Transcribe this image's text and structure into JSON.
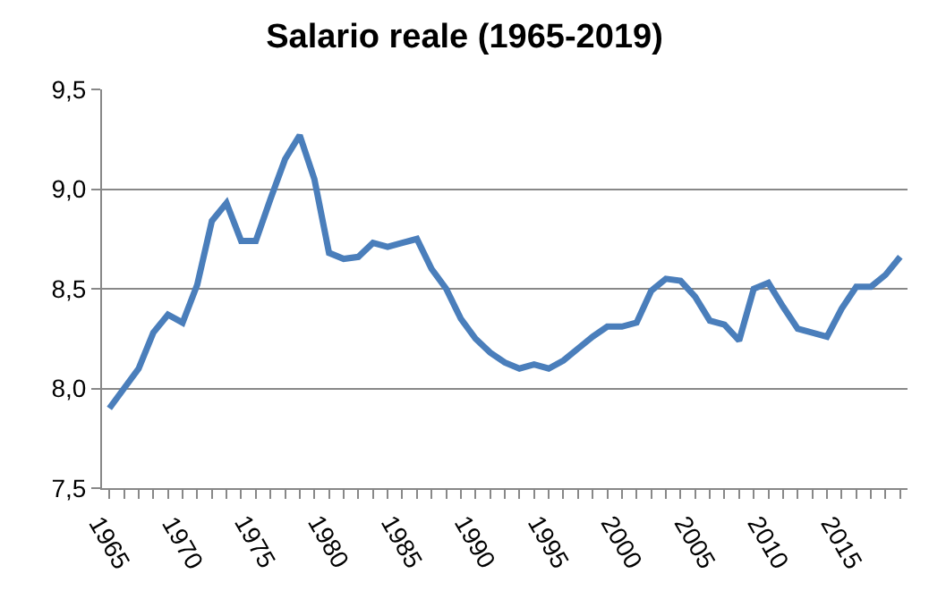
{
  "chart_data": {
    "type": "line",
    "title": "Salario reale (1965-2019)",
    "x": [
      1965,
      1966,
      1967,
      1968,
      1969,
      1970,
      1971,
      1972,
      1973,
      1974,
      1975,
      1976,
      1977,
      1978,
      1979,
      1980,
      1981,
      1982,
      1983,
      1984,
      1985,
      1986,
      1987,
      1988,
      1989,
      1990,
      1991,
      1992,
      1993,
      1994,
      1995,
      1996,
      1997,
      1998,
      1999,
      2000,
      2001,
      2002,
      2003,
      2004,
      2005,
      2006,
      2007,
      2008,
      2009,
      2010,
      2011,
      2012,
      2013,
      2014,
      2015,
      2016,
      2017,
      2018,
      2019
    ],
    "series": [
      {
        "color": "#4a7ebb",
        "values": [
          7.9,
          8.0,
          8.1,
          8.28,
          8.37,
          8.33,
          8.52,
          8.84,
          8.93,
          8.74,
          8.74,
          8.95,
          9.15,
          9.27,
          9.05,
          8.68,
          8.65,
          8.66,
          8.73,
          8.71,
          8.73,
          8.75,
          8.6,
          8.5,
          8.35,
          8.25,
          8.18,
          8.13,
          8.1,
          8.12,
          8.1,
          8.14,
          8.2,
          8.26,
          8.31,
          8.31,
          8.33,
          8.49,
          8.55,
          8.54,
          8.46,
          8.34,
          8.32,
          8.24,
          8.5,
          8.53,
          8.41,
          8.3,
          8.28,
          8.26,
          8.4,
          8.51,
          8.51,
          8.57,
          8.66
        ]
      }
    ],
    "xlim": [
      1964.5,
      2019.5
    ],
    "xticks": [
      1965,
      1970,
      1975,
      1980,
      1985,
      1990,
      1995,
      2000,
      2005,
      2010,
      2015
    ],
    "ylim": [
      7.5,
      9.5
    ],
    "yticks": [
      {
        "value": 7.5,
        "label": "7,5"
      },
      {
        "value": 8,
        "label": "8,0"
      },
      {
        "value": 8.5,
        "label": "8,5"
      },
      {
        "value": 9,
        "label": "9,0"
      },
      {
        "value": 9.5,
        "label": "9,5"
      }
    ],
    "grid": "y",
    "marker": "none",
    "line_style": "solid"
  }
}
